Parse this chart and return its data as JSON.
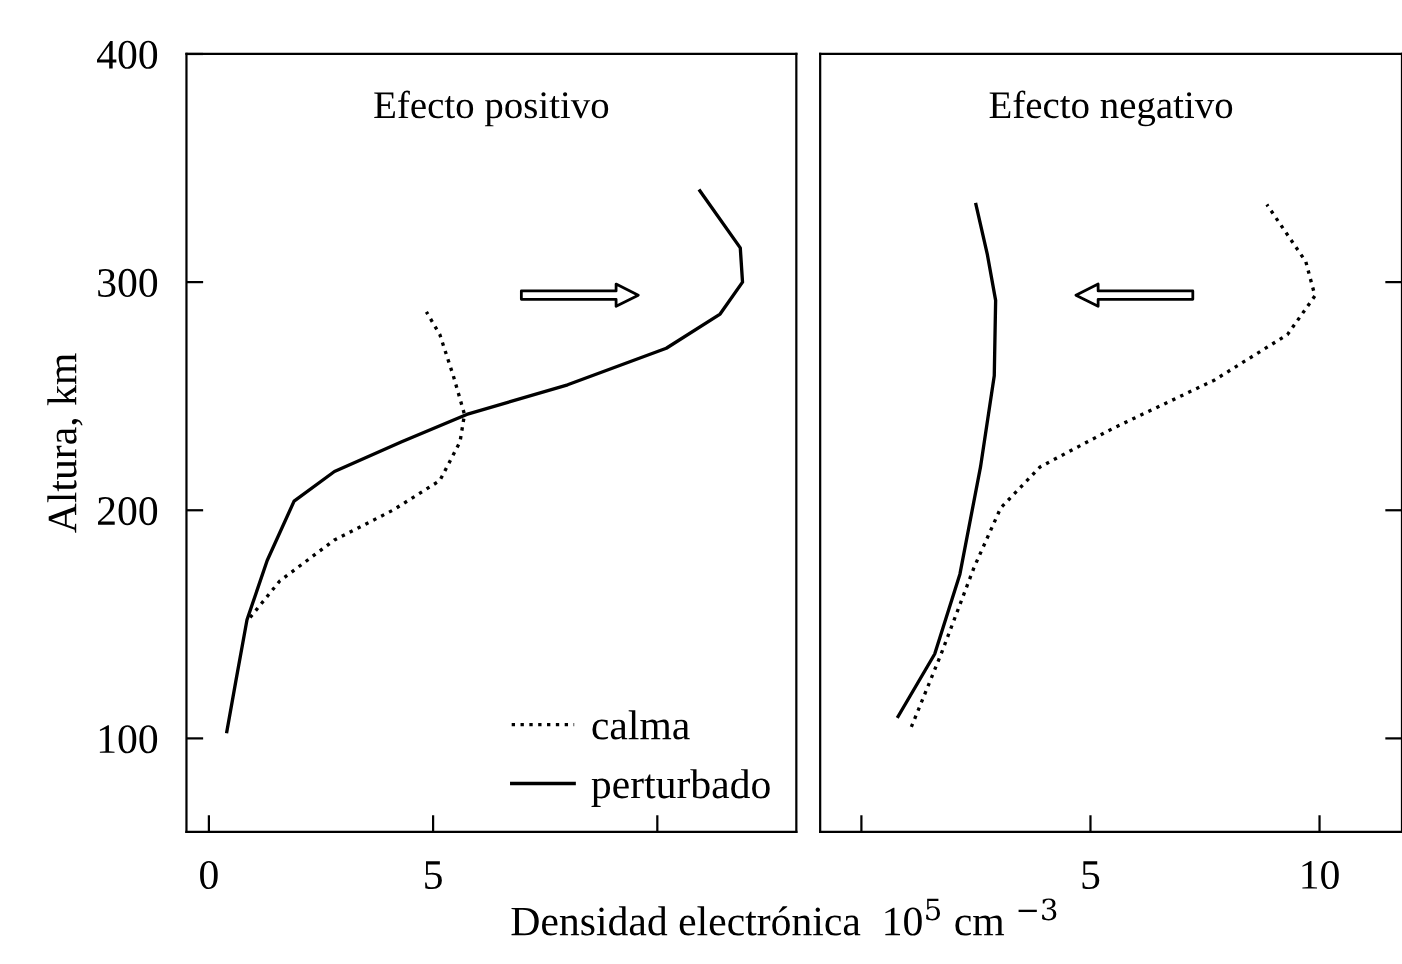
{
  "chart_data": [
    {
      "type": "line",
      "title": "Efecto positivo",
      "ylabel": "Altura, km",
      "xlabel": "Densidad electrónica  10$^{5}$ cm $^{−3}$",
      "xlim": [
        -0.5,
        13.1
      ],
      "xticks": [
        0,
        5,
        {
          "value": 10,
          "label": null
        }
      ],
      "ylim": [
        59,
        400
      ],
      "yticks": [
        100,
        200,
        300,
        400
      ],
      "legend": "bottom right",
      "grid": false,
      "series": [
        {
          "name": "calma",
          "color": "#000000",
          "line_style": "dotted",
          "x": [
            0.92,
            1.58,
            2.8,
            4.1,
            5.15,
            5.6,
            5.7,
            5.45,
            5.15,
            4.85
          ],
          "values": [
            153,
            169,
            187,
            200,
            213,
            230,
            242,
            259,
            277,
            287
          ]
        },
        {
          "name": "perturbado",
          "color": "#000000",
          "line_style": "solid",
          "x": [
            0.4,
            0.6,
            0.85,
            1.3,
            1.9,
            2.8,
            4.3,
            5.75,
            8.0,
            10.2,
            11.4,
            11.9,
            11.85,
            10.95
          ],
          "values": [
            103,
            125,
            152,
            178,
            204,
            217,
            230,
            242,
            255,
            271,
            286,
            300,
            315,
            340
          ]
        }
      ]
    },
    {
      "type": "line",
      "title": "Efecto negativo",
      "tick_labels": "x",
      "xlim": [
        -0.9,
        11.8
      ],
      "xticks": [
        {
          "value": 0,
          "label": null
        },
        5,
        10
      ],
      "ylim": [
        59,
        400
      ],
      "yticks": [
        {
          "value": 100,
          "label": null
        },
        {
          "value": 200,
          "label": null
        },
        {
          "value": 300,
          "label": null
        }
      ],
      "grid": false,
      "series": [
        {
          "color": "#000000",
          "line_style": "dotted",
          "x": [
            1.09,
            1.74,
            2.46,
            3.04,
            3.9,
            5.5,
            7.7,
            9.3,
            9.9,
            9.7,
            8.85
          ],
          "values": [
            105,
            137,
            175,
            201,
            219,
            236,
            257,
            277,
            294,
            309,
            334
          ]
        },
        {
          "color": "#000000",
          "line_style": "solid",
          "x": [
            0.8,
            1.6,
            2.15,
            2.6,
            2.9,
            2.93,
            2.75,
            2.5
          ],
          "values": [
            109.6,
            137,
            172,
            219,
            259,
            292,
            312,
            334
          ]
        }
      ]
    }
  ]
}
